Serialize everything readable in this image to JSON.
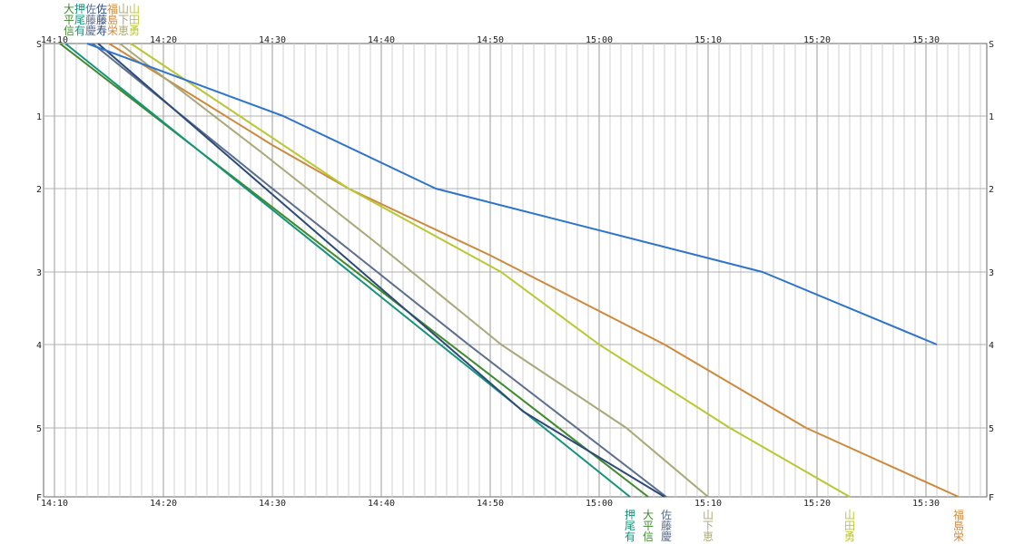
{
  "chart_data": {
    "type": "line",
    "x_ticks": [
      "14:10",
      "14:20",
      "14:30",
      "14:40",
      "14:50",
      "15:00",
      "15:10",
      "15:20",
      "15:30"
    ],
    "y_ticks": [
      "S",
      "1",
      "2",
      "3",
      "4",
      "5",
      "F"
    ],
    "xlim": [
      "14:10",
      "15:35"
    ],
    "grid": true,
    "series": [
      {
        "name": "大平信",
        "top_label": [
          "大",
          "平",
          "信"
        ],
        "bottom_label": [
          "大",
          "平",
          "信"
        ],
        "color": "#3f8a2c",
        "points": [
          [
            "14:10:30",
            "S"
          ],
          [
            "15:04:30",
            "F"
          ]
        ]
      },
      {
        "name": "押尾有",
        "top_label": [
          "押",
          "尾",
          "有"
        ],
        "bottom_label": [
          "押",
          "尾",
          "有"
        ],
        "color": "#14947a",
        "points": [
          [
            "14:11:00",
            "S"
          ],
          [
            "15:02:50",
            "F"
          ]
        ]
      },
      {
        "name": "佐藤慶",
        "top_label": [
          "佐",
          "藤",
          "慶"
        ],
        "bottom_label": [
          "佐",
          "藤",
          "慶"
        ],
        "color": "#5d6e8e",
        "points": [
          [
            "14:13:30",
            "S"
          ],
          [
            "14:30:00",
            "2"
          ],
          [
            "14:48:00",
            "4"
          ],
          [
            "15:06:10",
            "F"
          ]
        ]
      },
      {
        "name": "佐藤寿",
        "top_label": [
          "佐",
          "藤",
          "寿"
        ],
        "bottom_label": [],
        "color": "#2c4a7a",
        "points": [
          [
            "14:14:00",
            "S"
          ],
          [
            "14:53:00",
            "4.8"
          ],
          [
            "15:06:00",
            "F"
          ]
        ]
      },
      {
        "name": "福島栄",
        "top_label": [
          "福",
          "島",
          "栄"
        ],
        "bottom_label": [
          "福",
          "島",
          "栄"
        ],
        "color": "#cd8a3c",
        "points": [
          [
            "14:15:00",
            "S"
          ],
          [
            "14:30:00",
            "1.4"
          ],
          [
            "14:37:00",
            "2"
          ],
          [
            "14:50:00",
            "2.8"
          ],
          [
            "15:06:00",
            "4"
          ],
          [
            "15:19:00",
            "5"
          ],
          [
            "15:33:00",
            "F"
          ]
        ]
      },
      {
        "name": "山下恵",
        "top_label": [
          "山",
          "下",
          "恵"
        ],
        "bottom_label": [
          "山",
          "下",
          "恵"
        ],
        "color": "#a8a878",
        "points": [
          [
            "14:16:00",
            "S"
          ],
          [
            "14:29:00",
            "1.5"
          ],
          [
            "14:40:00",
            "2.7"
          ],
          [
            "14:51:00",
            "4"
          ],
          [
            "15:02:30",
            "5"
          ],
          [
            "15:10:00",
            "F"
          ]
        ]
      },
      {
        "name": "山田勇",
        "top_label": [
          "山",
          "田",
          "勇"
        ],
        "bottom_label": [
          "山",
          "田",
          "勇"
        ],
        "color": "#b9c832",
        "points": [
          [
            "14:17:00",
            "S"
          ],
          [
            "14:27:00",
            "1"
          ],
          [
            "14:37:00",
            "2"
          ],
          [
            "14:51:00",
            "3"
          ],
          [
            "15:00:00",
            "4"
          ],
          [
            "15:12:00",
            "5"
          ],
          [
            "15:23:00",
            "F"
          ]
        ]
      },
      {
        "name": "",
        "top_label": [],
        "bottom_label": [],
        "color": "#2f74cc",
        "points": [
          [
            "14:13:00",
            "S"
          ],
          [
            "14:31:00",
            "1"
          ],
          [
            "14:45:00",
            "2"
          ],
          [
            "15:15:00",
            "3"
          ],
          [
            "15:31:00",
            "4"
          ]
        ]
      }
    ]
  }
}
